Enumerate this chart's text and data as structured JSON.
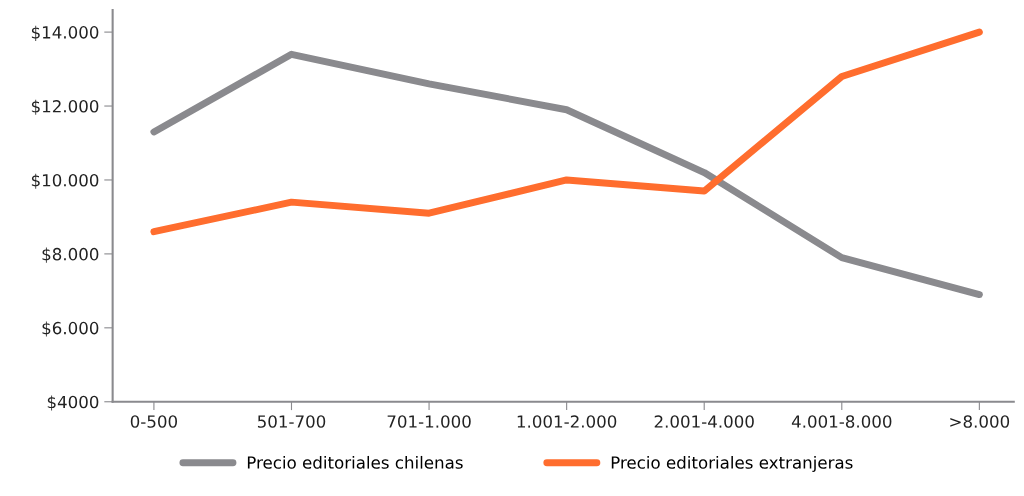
{
  "chart_data": {
    "type": "line",
    "categories": [
      "0-500",
      "501-700",
      "701-1.000",
      "1.001-2.000",
      "2.001-4.000",
      "4.001-8.000",
      ">8.000"
    ],
    "series": [
      {
        "name": "Precio editoriales chilenas",
        "color": "#8a8a8e",
        "values": [
          11300,
          13400,
          12600,
          11900,
          10200,
          7900,
          6900
        ]
      },
      {
        "name": "Precio editoriales extranjeras",
        "color": "#ff6d2e",
        "values": [
          8600,
          9400,
          9100,
          10000,
          9700,
          12800,
          14000
        ]
      }
    ],
    "ylim": [
      4000,
      14600
    ],
    "yticks": [
      {
        "value": 4000,
        "label": "$4000"
      },
      {
        "value": 6000,
        "label": "$6.000"
      },
      {
        "value": 8000,
        "label": "$8.000"
      },
      {
        "value": 10000,
        "label": "$10.000"
      },
      {
        "value": 12000,
        "label": "$12.000"
      },
      {
        "value": 14000,
        "label": "$14.000"
      }
    ],
    "grid": false,
    "legend": "bottom",
    "marker": "none",
    "line_style": "solid"
  }
}
